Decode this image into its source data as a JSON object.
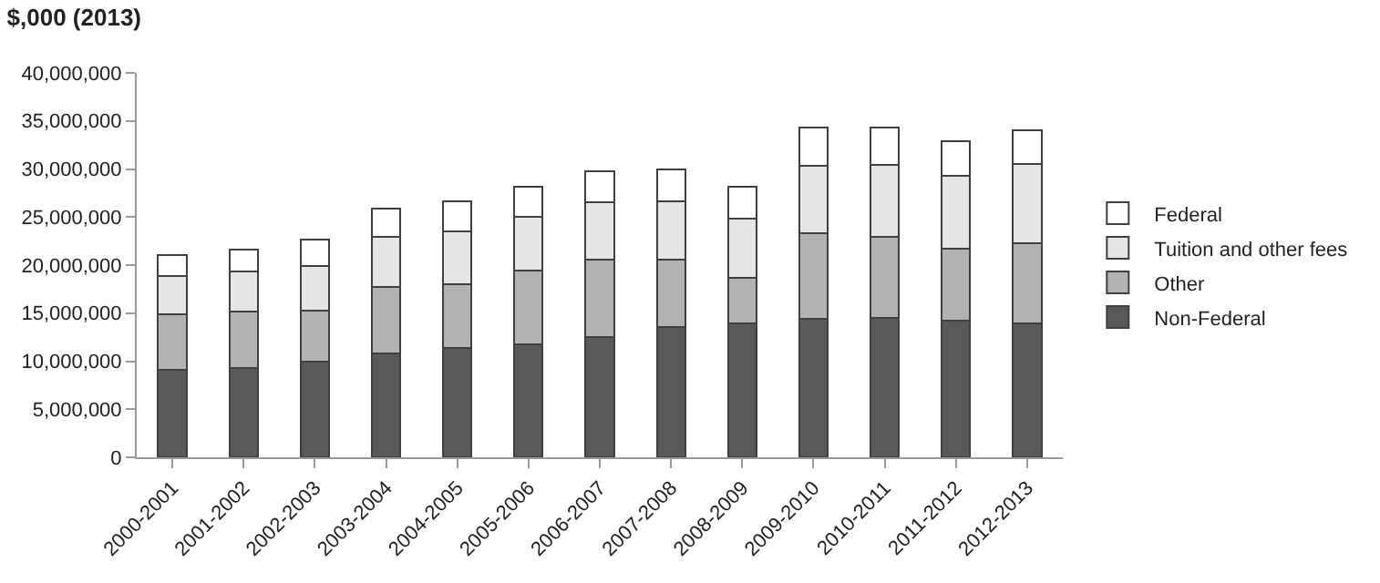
{
  "chart_data": {
    "type": "bar",
    "title": "$,000 (2013)",
    "stacked": true,
    "categories": [
      "2000-2001",
      "2001-2002",
      "2002-2003",
      "2003-2004",
      "2004-2005",
      "2005-2006",
      "2006-2007",
      "2007-2008",
      "2008-2009",
      "2009-2010",
      "2010-2011",
      "2011-2012",
      "2012-2013"
    ],
    "series": [
      {
        "name": "Non-Federal",
        "color": "#595959",
        "values": [
          9100000,
          9300000,
          10000000,
          10800000,
          11400000,
          11800000,
          12500000,
          13600000,
          13900000,
          14400000,
          14500000,
          14200000,
          13900000
        ]
      },
      {
        "name": "Other",
        "color": "#b3b3b3",
        "values": [
          5800000,
          5900000,
          5300000,
          6900000,
          6600000,
          7600000,
          8100000,
          7000000,
          4800000,
          8900000,
          8400000,
          7500000,
          8400000
        ]
      },
      {
        "name": "Tuition and other fees",
        "color": "#e6e6e6",
        "values": [
          4000000,
          4100000,
          4600000,
          5200000,
          5500000,
          5600000,
          5900000,
          6000000,
          6100000,
          7000000,
          7500000,
          7600000,
          8200000
        ]
      },
      {
        "name": "Federal",
        "color": "#ffffff",
        "values": [
          2100000,
          2300000,
          2800000,
          3000000,
          3100000,
          3200000,
          3300000,
          3400000,
          3400000,
          4000000,
          3900000,
          3600000,
          3500000
        ]
      }
    ],
    "ylim": [
      0,
      40000000
    ],
    "yticks": [
      {
        "value": 0,
        "label": "0"
      },
      {
        "value": 5000000,
        "label": "5,000,000"
      },
      {
        "value": 10000000,
        "label": "10,000,000"
      },
      {
        "value": 15000000,
        "label": "15,000,000"
      },
      {
        "value": 20000000,
        "label": "20,000,000"
      },
      {
        "value": 25000000,
        "label": "25,000,000"
      },
      {
        "value": 30000000,
        "label": "30,000,000"
      },
      {
        "value": 35000000,
        "label": "35,000,000"
      },
      {
        "value": 40000000,
        "label": "40,000,000"
      }
    ],
    "grid": false,
    "legend": "right"
  }
}
